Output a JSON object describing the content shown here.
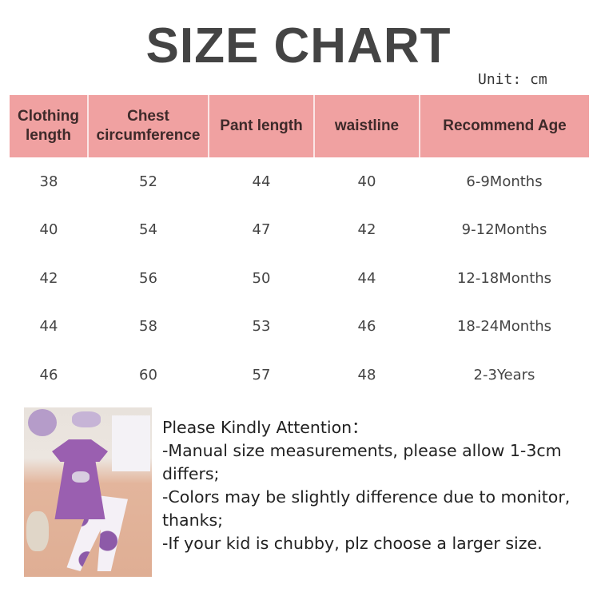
{
  "title": "SIZE CHART",
  "unit": "Unit: cm",
  "table": {
    "headers": [
      [
        "Clothing",
        "length"
      ],
      [
        "Chest",
        "circumference"
      ],
      [
        "Pant length"
      ],
      [
        "waistline"
      ],
      [
        "Recommend Age"
      ]
    ],
    "rows": [
      [
        "38",
        "52",
        "44",
        "40",
        "6-9Months"
      ],
      [
        "40",
        "54",
        "47",
        "42",
        "9-12Months"
      ],
      [
        "42",
        "56",
        "50",
        "44",
        "12-18Months"
      ],
      [
        "44",
        "58",
        "53",
        "46",
        "18-24Months"
      ],
      [
        "46",
        "60",
        "57",
        "48",
        "2-3Years"
      ]
    ]
  },
  "header_color": "#f0a1a1",
  "notes": [
    "Please Kindly Attention：",
    "-Manual size measurements, please allow 1-3cm differs;",
    "-Colors may be slightly difference due to monitor, thanks;",
    "-If your kid is chubby, plz choose a larger size."
  ]
}
